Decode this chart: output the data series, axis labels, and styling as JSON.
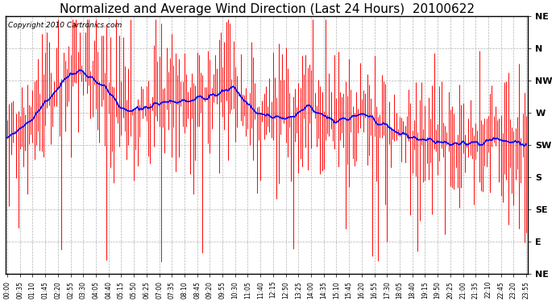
{
  "title": "Normalized and Average Wind Direction (Last 24 Hours)  20100622",
  "copyright": "Copyright 2010 Cartronics.com",
  "ytick_labels": [
    "NE",
    "N",
    "NW",
    "W",
    "SW",
    "S",
    "SE",
    "E",
    "NE"
  ],
  "ytick_values": [
    8,
    7,
    6,
    5,
    4,
    3,
    2,
    1,
    0
  ],
  "ylim": [
    0,
    8
  ],
  "plot_bg_color": "#ffffff",
  "figure_bg_color": "#ffffff",
  "red_color": "#ff0000",
  "blue_color": "#0000ff",
  "grid_color": "#aaaaaa",
  "title_fontsize": 11,
  "copyright_fontsize": 6.5,
  "n_points": 288
}
